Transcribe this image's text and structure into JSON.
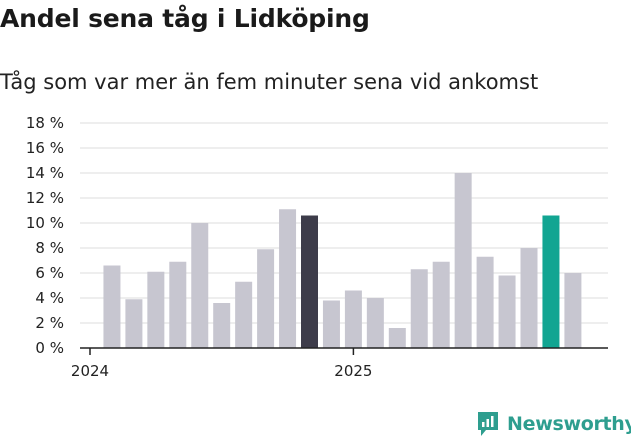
{
  "header": {
    "title": "Andel sena tåg i Lidköping",
    "subtitle": "Tåg som var mer än fem minuter sena vid ankomst"
  },
  "brand": {
    "name": "Newsworthy",
    "color": "#2e9e8f"
  },
  "colors": {
    "bar_default": "#c7c6d0",
    "bar_highlight": "#3d3c4a",
    "bar_latest": "#12a592",
    "grid": "#dcdcdc",
    "axis": "#222222"
  },
  "chart_data": {
    "type": "bar",
    "title": "Andel sena tåg i Lidköping",
    "subtitle": "Tåg som var mer än fem minuter sena vid ankomst",
    "xlabel": "",
    "ylabel": "",
    "ylim": [
      0,
      18
    ],
    "y_ticks": [
      "0 %",
      "2 %",
      "4 %",
      "6 %",
      "8 %",
      "10 %",
      "12 %",
      "14 %",
      "16 %",
      "18 %"
    ],
    "x_tick_labels": [
      {
        "label": "2024",
        "index": 0
      },
      {
        "label": "2025",
        "index": 12
      }
    ],
    "grid": true,
    "categories": [
      "2024-01",
      "2024-02",
      "2024-03",
      "2024-04",
      "2024-05",
      "2024-06",
      "2024-07",
      "2024-08",
      "2024-09",
      "2024-10",
      "2024-11",
      "2024-12",
      "2025-01",
      "2025-02",
      "2025-03",
      "2025-04",
      "2025-05",
      "2025-06",
      "2025-07",
      "2025-08",
      "2025-09",
      "2025-10",
      "2025-11",
      "2025-12"
    ],
    "values": [
      null,
      6.6,
      3.9,
      6.1,
      6.9,
      10.0,
      3.6,
      5.3,
      7.9,
      11.1,
      10.6,
      3.8,
      4.6,
      4.0,
      1.6,
      6.3,
      6.9,
      14.0,
      7.3,
      5.8,
      8.0,
      10.6,
      6.0,
      null
    ],
    "highlight": [
      {
        "category": "2024-11",
        "role": "highlight"
      },
      {
        "category": "2025-10",
        "role": "latest"
      }
    ]
  }
}
